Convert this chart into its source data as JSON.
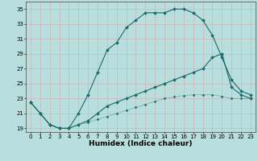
{
  "xlabel": "Humidex (Indice chaleur)",
  "bg_color": "#b8dede",
  "grid_color": "#c8b8b8",
  "line_color": "#1a6b6b",
  "xlim": [
    -0.5,
    23.5
  ],
  "ylim": [
    18.5,
    36.0
  ],
  "xticks": [
    0,
    1,
    2,
    3,
    4,
    5,
    6,
    7,
    8,
    9,
    10,
    11,
    12,
    13,
    14,
    15,
    16,
    17,
    18,
    19,
    20,
    21,
    22,
    23
  ],
  "yticks": [
    19,
    21,
    23,
    25,
    27,
    29,
    31,
    33,
    35
  ],
  "line1_x": [
    0,
    1,
    2,
    3,
    4,
    5,
    6,
    7,
    8,
    9,
    10,
    11,
    12,
    13,
    14,
    15,
    16,
    17,
    18,
    19,
    20,
    21,
    22,
    23
  ],
  "line1_y": [
    22.5,
    21.0,
    19.5,
    19.0,
    19.0,
    21.0,
    23.5,
    26.5,
    29.5,
    30.5,
    32.5,
    33.5,
    34.5,
    34.5,
    34.5,
    35.0,
    35.0,
    34.5,
    33.5,
    31.5,
    28.5,
    25.5,
    24.0,
    23.5
  ],
  "line2_x": [
    0,
    1,
    2,
    3,
    4,
    5,
    6,
    7,
    8,
    9,
    10,
    11,
    12,
    13,
    14,
    15,
    16,
    17,
    18,
    19,
    20,
    21,
    22,
    23
  ],
  "line2_y": [
    22.5,
    21.0,
    19.5,
    19.0,
    19.0,
    19.5,
    20.0,
    21.0,
    22.0,
    22.5,
    23.0,
    23.5,
    24.0,
    24.5,
    25.0,
    25.5,
    26.0,
    26.5,
    27.0,
    28.5,
    29.0,
    24.5,
    23.5,
    23.0
  ],
  "line3_x": [
    0,
    1,
    2,
    3,
    4,
    5,
    6,
    7,
    8,
    9,
    10,
    11,
    12,
    13,
    14,
    15,
    16,
    17,
    18,
    19,
    20,
    21,
    22,
    23
  ],
  "line3_y": [
    22.5,
    21.0,
    19.5,
    19.0,
    19.0,
    19.5,
    19.8,
    20.2,
    20.6,
    21.0,
    21.4,
    21.8,
    22.2,
    22.6,
    23.0,
    23.2,
    23.4,
    23.5,
    23.5,
    23.5,
    23.3,
    23.0,
    23.0,
    23.0
  ],
  "xlabel_fontsize": 6.5,
  "tick_fontsize": 5.0
}
